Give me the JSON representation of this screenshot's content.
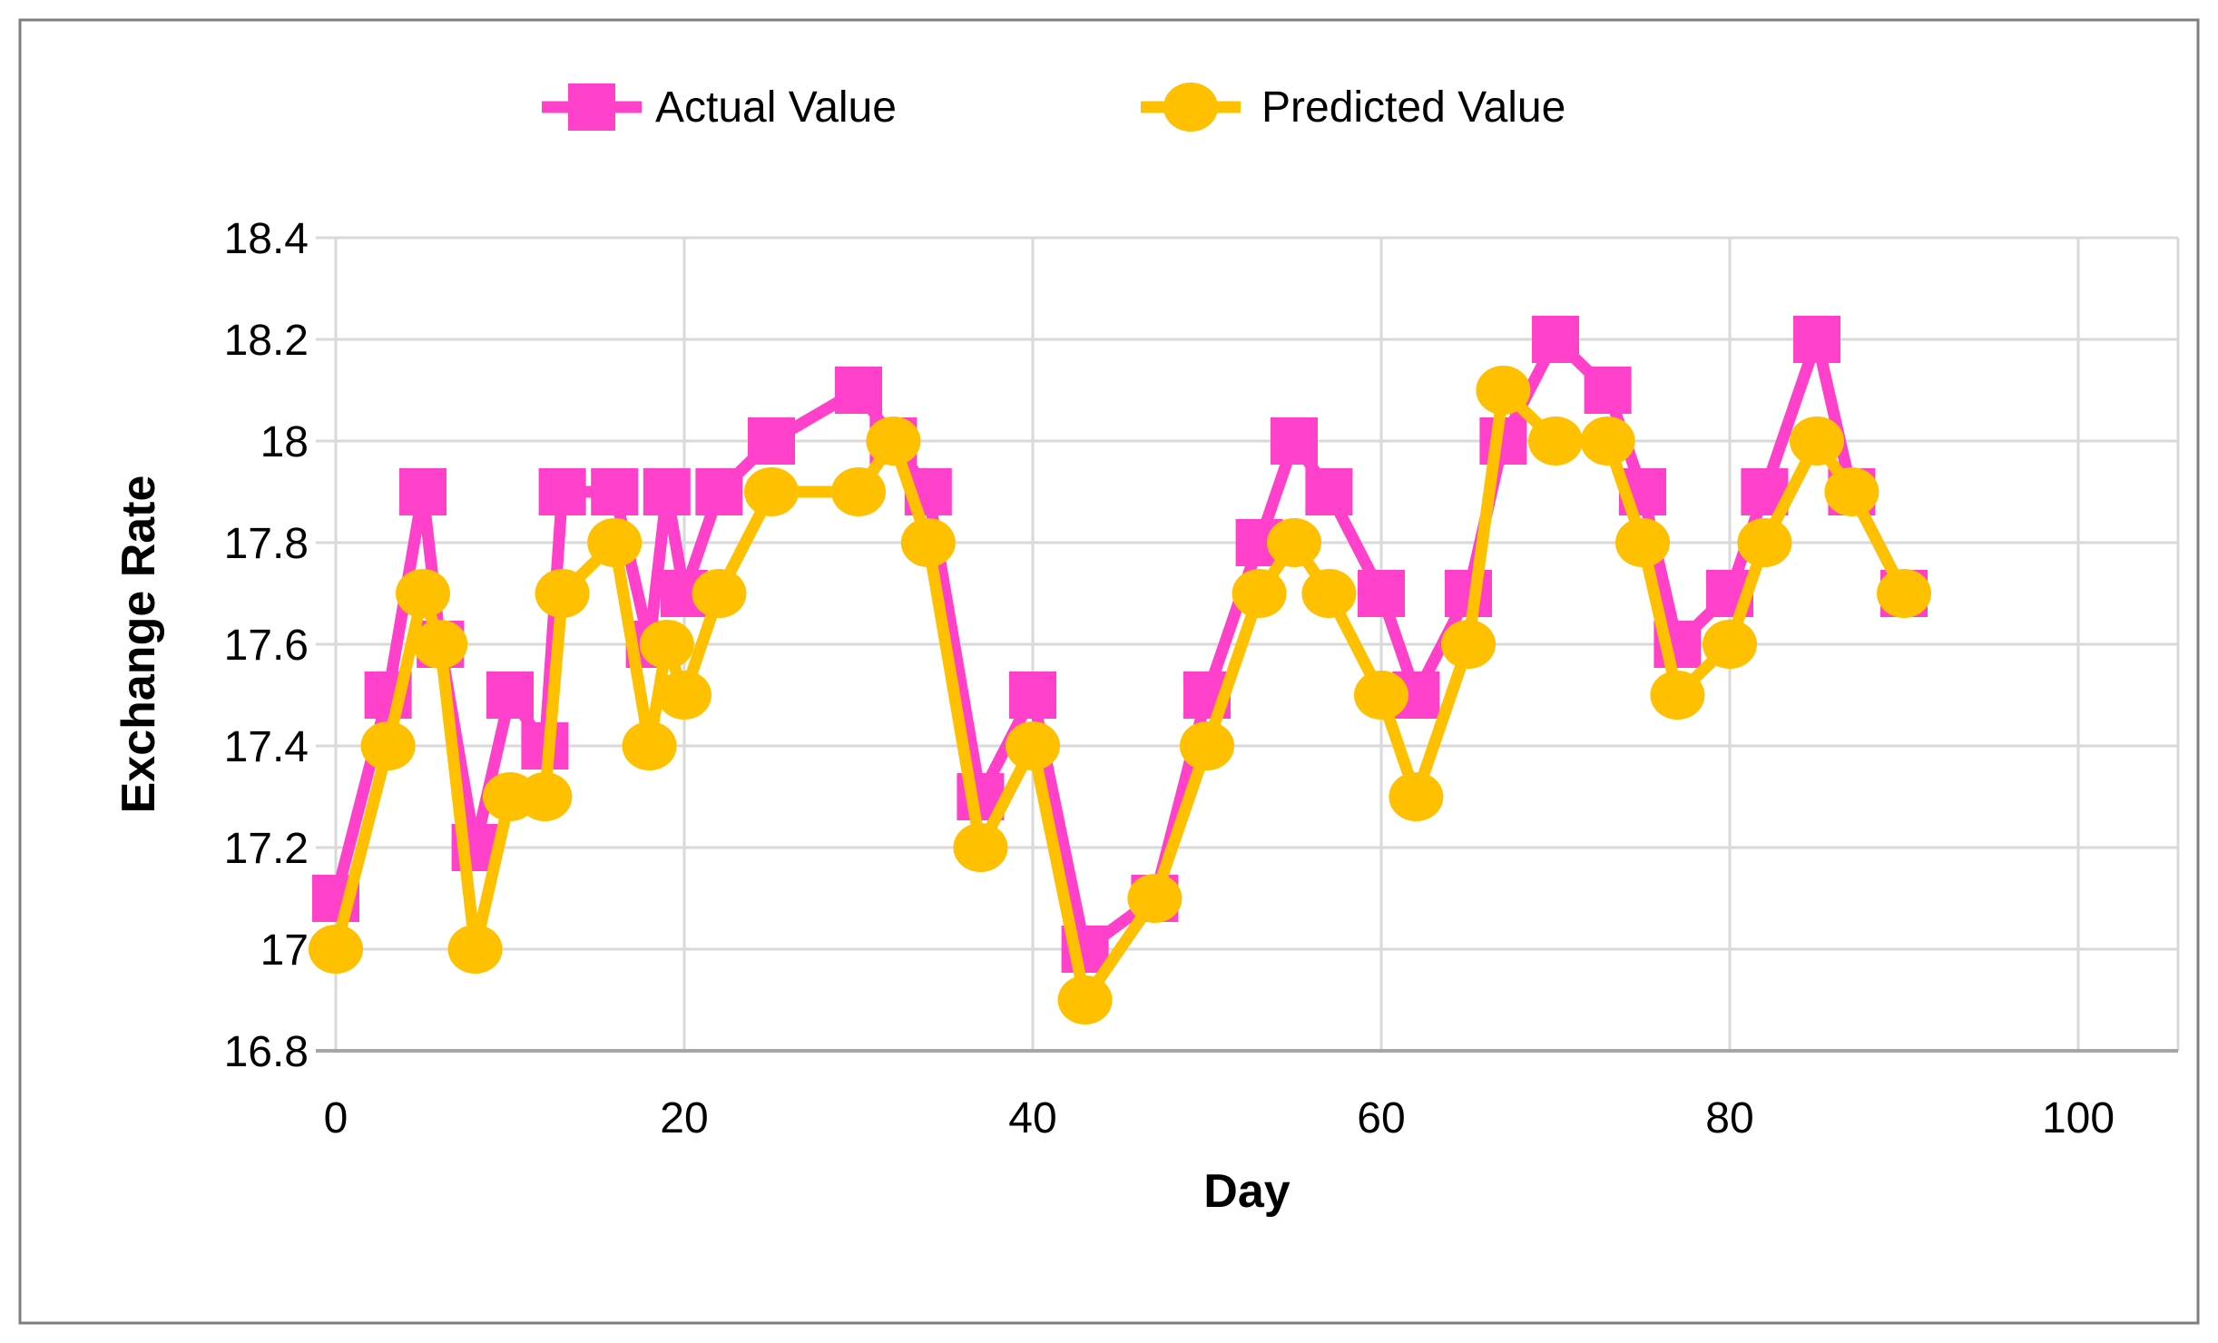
{
  "figure": {
    "background": "#ffffff",
    "border_color": "#7f7f7f",
    "gridline_color": "#d9d9d9",
    "axisline_color": "#a6a6a6"
  },
  "legend": {
    "items": [
      {
        "label": "Actual Value",
        "color": "#ff40cb",
        "marker": "square"
      },
      {
        "label": "Predicted Value",
        "color": "#ffc000",
        "marker": "circle"
      }
    ]
  },
  "chart_data": {
    "type": "line",
    "title": "",
    "xlabel": "Day",
    "ylabel": "Exchange Rate",
    "grid": true,
    "legend_position": "top",
    "xlim": [
      -1.2,
      105.7
    ],
    "ylim": [
      16.8,
      18.4
    ],
    "xticks": [
      0,
      20,
      40,
      60,
      80,
      100
    ],
    "yticks": [
      16.8,
      17.0,
      17.2,
      17.4,
      17.6,
      17.8,
      18.0,
      18.2,
      18.4
    ],
    "ytick_labels": [
      "16.8",
      "17",
      "17.2",
      "17.4",
      "17.6",
      "17.8",
      "18",
      "18.2",
      "18.4"
    ],
    "x": [
      0,
      3,
      5,
      6,
      8,
      10,
      12,
      13,
      16,
      18,
      19,
      20,
      22,
      25,
      30,
      32,
      34,
      37,
      40,
      43,
      47,
      50,
      53,
      55,
      57,
      60,
      62,
      65,
      67,
      70,
      73,
      75,
      77,
      80,
      82,
      85,
      87,
      90
    ],
    "series": [
      {
        "name": "Actual Value",
        "color": "#ff40cb",
        "marker": "square",
        "values": [
          17.1,
          17.5,
          17.9,
          17.6,
          17.2,
          17.5,
          17.4,
          17.9,
          17.9,
          17.6,
          17.9,
          17.7,
          17.9,
          18.0,
          18.1,
          18.0,
          17.9,
          17.3,
          17.5,
          17.0,
          17.1,
          17.5,
          17.8,
          18.0,
          17.9,
          17.7,
          17.5,
          17.7,
          18.0,
          18.2,
          18.1,
          17.9,
          17.6,
          17.7,
          17.9,
          18.2,
          17.9,
          17.7
        ]
      },
      {
        "name": "Predicted Value",
        "color": "#ffc000",
        "marker": "circle",
        "values": [
          17.0,
          17.4,
          17.7,
          17.6,
          17.0,
          17.3,
          17.3,
          17.7,
          17.8,
          17.4,
          17.6,
          17.5,
          17.7,
          17.9,
          17.9,
          18.0,
          17.8,
          17.2,
          17.4,
          16.9,
          17.1,
          17.4,
          17.7,
          17.8,
          17.7,
          17.5,
          17.3,
          17.6,
          18.1,
          18.0,
          18.0,
          17.8,
          17.5,
          17.6,
          17.8,
          18.0,
          17.9,
          17.7
        ]
      }
    ]
  }
}
